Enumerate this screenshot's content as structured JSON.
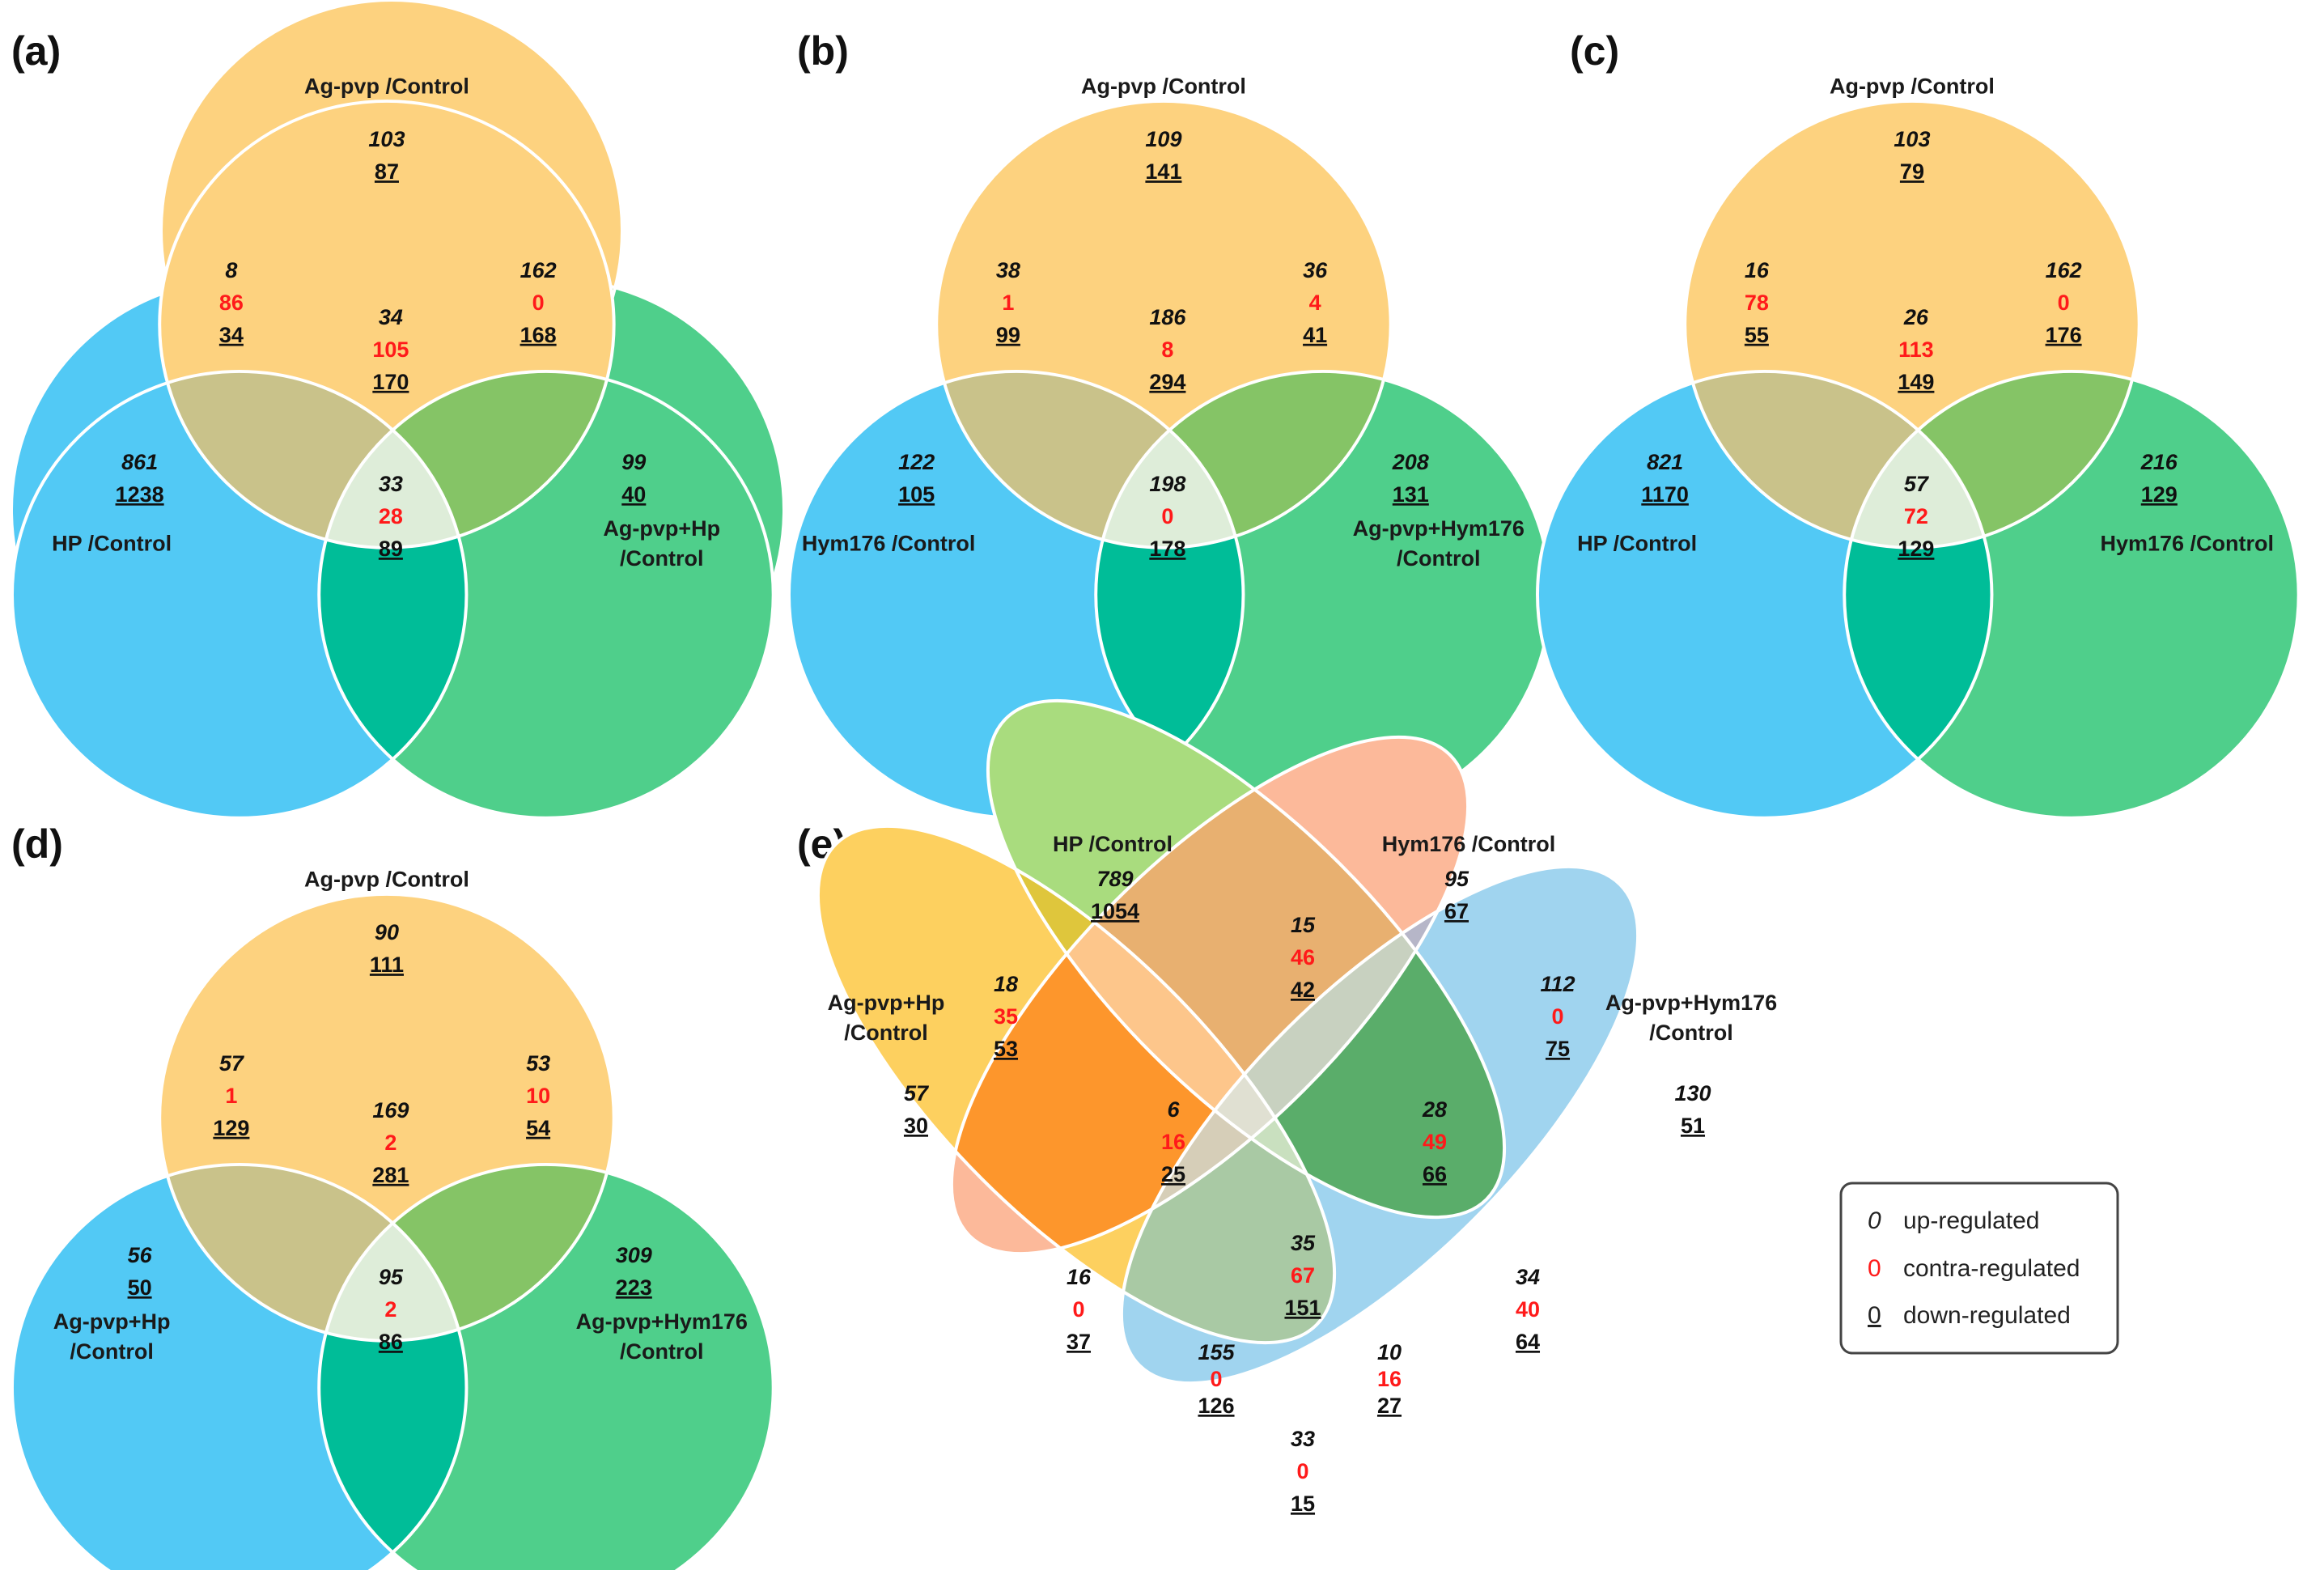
{
  "colors": {
    "orange": "#fdd27f",
    "blue": "#52c9f5",
    "green": "#4fcf8b",
    "ab": "#c9c28a",
    "ac": "#85c466",
    "bc": "#00bd98",
    "abc": "#deedd9",
    "contra": "#ff1a1a",
    "e_set1": "#fdd05f",
    "e_set2": "#a9dc7e",
    "e_set3": "#fcb99a",
    "e_set4": "#a0d4ef"
  },
  "panels": {
    "a": {
      "label": "(a)",
      "top_label": "Ag-pvp /Control",
      "left_label": "HP /Control",
      "right_label_1": "Ag-pvp+Hp",
      "right_label_2": "/Control",
      "top": {
        "up": "103",
        "down": "87"
      },
      "ab": {
        "up": "8",
        "contra": "86",
        "down": "34"
      },
      "ac": {
        "up": "162",
        "contra": "0",
        "down": "168"
      },
      "abc": {
        "up": "34",
        "contra": "105",
        "down": "170"
      },
      "left": {
        "up": "861",
        "down": "1238"
      },
      "right": {
        "up": "99",
        "down": "40"
      },
      "bc": {
        "up": "33",
        "contra": "28",
        "down": "89"
      }
    },
    "b": {
      "label": "(b)",
      "top_label": "Ag-pvp /Control",
      "left_label": "Hym176 /Control",
      "right_label_1": "Ag-pvp+Hym176",
      "right_label_2": "/Control",
      "top": {
        "up": "109",
        "down": "141"
      },
      "ab": {
        "up": "38",
        "contra": "1",
        "down": "99"
      },
      "ac": {
        "up": "36",
        "contra": "4",
        "down": "41"
      },
      "abc": {
        "up": "186",
        "contra": "8",
        "down": "294"
      },
      "left": {
        "up": "122",
        "down": "105"
      },
      "right": {
        "up": "208",
        "down": "131"
      },
      "bc": {
        "up": "198",
        "contra": "0",
        "down": "178"
      }
    },
    "c": {
      "label": "(c)",
      "top_label": "Ag-pvp /Control",
      "left_label": "HP /Control",
      "right_label_1": "Hym176 /Control",
      "top": {
        "up": "103",
        "down": "79"
      },
      "ab": {
        "up": "16",
        "contra": "78",
        "down": "55"
      },
      "ac": {
        "up": "162",
        "contra": "0",
        "down": "176"
      },
      "abc": {
        "up": "26",
        "contra": "113",
        "down": "149"
      },
      "left": {
        "up": "821",
        "down": "1170"
      },
      "right": {
        "up": "216",
        "down": "129"
      },
      "bc": {
        "up": "57",
        "contra": "72",
        "down": "129"
      }
    },
    "d": {
      "label": "(d)",
      "top_label": "Ag-pvp /Control",
      "left_label_1": "Ag-pvp+Hp",
      "left_label_2": "/Control",
      "right_label_1": "Ag-pvp+Hym176",
      "right_label_2": "/Control",
      "top": {
        "up": "90",
        "down": "111"
      },
      "ab": {
        "up": "57",
        "contra": "1",
        "down": "129"
      },
      "ac": {
        "up": "53",
        "contra": "10",
        "down": "54"
      },
      "abc": {
        "up": "169",
        "contra": "2",
        "down": "281"
      },
      "left": {
        "up": "56",
        "down": "50"
      },
      "right": {
        "up": "309",
        "down": "223"
      },
      "bc": {
        "up": "95",
        "contra": "2",
        "down": "86"
      }
    },
    "e": {
      "label": "(e)",
      "hp_label": "HP /Control",
      "hym_label": "Hym176 /Control",
      "agpvphp_label_1": "Ag-pvp+Hp",
      "agpvphp_label_2": "/Control",
      "agpvphym_label_1": "Ag-pvp+Hym176",
      "agpvphym_label_2": "/Control",
      "hp_only": {
        "up": "789",
        "down": "1054"
      },
      "hym_only": {
        "up": "95",
        "down": "67"
      },
      "agpvphp_only": {
        "up": "57",
        "down": "30"
      },
      "agpvphym_only": {
        "up": "130",
        "down": "51"
      },
      "r_18": {
        "up": "18",
        "contra": "35",
        "down": "53"
      },
      "r_15": {
        "up": "15",
        "contra": "46",
        "down": "42"
      },
      "r_112": {
        "up": "112",
        "contra": "0",
        "down": "75"
      },
      "r_6": {
        "up": "6",
        "contra": "16",
        "down": "25"
      },
      "r_28": {
        "up": "28",
        "contra": "49",
        "down": "66"
      },
      "r_16": {
        "up": "16",
        "contra": "0",
        "down": "37"
      },
      "r_35": {
        "up": "35",
        "contra": "67",
        "down": "151"
      },
      "r_34": {
        "up": "34",
        "contra": "40",
        "down": "64"
      },
      "r_155": {
        "up": "155",
        "contra": "0",
        "down": "126"
      },
      "r_10": {
        "up": "10",
        "contra": "16",
        "down": "27"
      },
      "r_33": {
        "up": "33",
        "contra": "0",
        "down": "15"
      }
    }
  },
  "legend": {
    "up_symbol": "0",
    "up_text": "up-regulated",
    "contra_symbol": "0",
    "contra_text": "contra-regulated",
    "down_symbol": "0",
    "down_text": "down-regulated"
  }
}
